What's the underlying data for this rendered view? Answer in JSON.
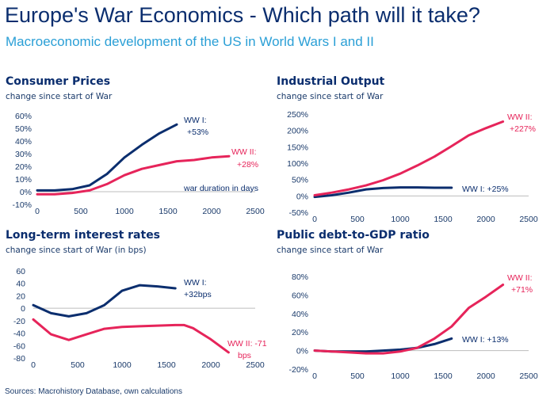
{
  "title": "Europe's War Economics - Which path will it take?",
  "subtitle": "Macroeconomic development of the US in World Wars I and II",
  "source": "Sources: Macrohistory Database, own calculations",
  "colors": {
    "ww1": "#0b2e6e",
    "ww2": "#e6245a",
    "title": "#0a2d6e",
    "subtitle": "#2a9fd6",
    "axis": "#bdbdbd"
  },
  "chart_data": [
    {
      "type": "line",
      "title": "Consumer Prices",
      "subtitle": "change since start of War",
      "xlim": [
        0,
        2500
      ],
      "ylim": [
        -10,
        60
      ],
      "y_ticks": [
        "-10%",
        "0%",
        "10%",
        "20%",
        "30%",
        "40%",
        "50%",
        "60%"
      ],
      "x_ticks": [
        "0",
        "500",
        "1000",
        "1500",
        "2000",
        "2500"
      ],
      "series": [
        {
          "name": "WW I",
          "x": [
            0,
            200,
            400,
            600,
            800,
            1000,
            1200,
            1400,
            1600
          ],
          "y": [
            1,
            1,
            2,
            5,
            14,
            27,
            37,
            46,
            53
          ]
        },
        {
          "name": "WW II",
          "x": [
            0,
            200,
            400,
            600,
            800,
            1000,
            1200,
            1400,
            1600,
            1800,
            2000,
            2200
          ],
          "y": [
            -2,
            -2,
            -1,
            1,
            6,
            13,
            18,
            21,
            24,
            25,
            27,
            28
          ]
        }
      ],
      "annotations": [
        "WW I:",
        "+53%",
        "WW II:",
        "+28%",
        "war duration in days"
      ]
    },
    {
      "type": "line",
      "title": "Industrial Output",
      "subtitle": "change since start of War",
      "xlim": [
        0,
        2500
      ],
      "ylim": [
        -50,
        250
      ],
      "y_ticks": [
        "-50%",
        "0%",
        "50%",
        "100%",
        "150%",
        "200%",
        "250%"
      ],
      "x_ticks": [
        "0",
        "500",
        "1000",
        "1500",
        "2000",
        "2500"
      ],
      "series": [
        {
          "name": "WW I",
          "x": [
            0,
            200,
            400,
            600,
            800,
            1000,
            1200,
            1400,
            1600
          ],
          "y": [
            -3,
            2,
            10,
            20,
            24,
            26,
            26,
            25,
            25
          ]
        },
        {
          "name": "WW II",
          "x": [
            0,
            200,
            400,
            600,
            800,
            1000,
            1200,
            1400,
            1600,
            1800,
            2000,
            2200
          ],
          "y": [
            2,
            10,
            20,
            32,
            48,
            68,
            93,
            120,
            152,
            185,
            207,
            227
          ]
        }
      ],
      "annotations": [
        "WW II:",
        "+227%",
        "WW I: +25%"
      ]
    },
    {
      "type": "line",
      "title": "Long-term interest rates",
      "subtitle": "change since start of War (in bps)",
      "xlim": [
        0,
        2500
      ],
      "ylim": [
        -80,
        60
      ],
      "y_ticks": [
        "-80",
        "-60",
        "-40",
        "-20",
        "0",
        "20",
        "40",
        "60"
      ],
      "x_ticks": [
        "0",
        "500",
        "1000",
        "1500",
        "2000",
        "2500"
      ],
      "series": [
        {
          "name": "WW I",
          "x": [
            0,
            200,
            400,
            600,
            800,
            1000,
            1200,
            1400,
            1600
          ],
          "y": [
            5,
            -8,
            -13,
            -8,
            5,
            28,
            37,
            35,
            32
          ]
        },
        {
          "name": "WW II",
          "x": [
            0,
            200,
            400,
            600,
            800,
            1000,
            1200,
            1400,
            1600,
            1700,
            1800,
            2000,
            2200
          ],
          "y": [
            -18,
            -42,
            -51,
            -42,
            -33,
            -30,
            -29,
            -28,
            -27,
            -27,
            -32,
            -50,
            -71
          ]
        }
      ],
      "annotations": [
        "WW I:",
        "+32bps",
        "WW II: -71",
        "bps"
      ]
    },
    {
      "type": "line",
      "title": "Public debt-to-GDP ratio",
      "subtitle": "change since start of War",
      "xlim": [
        0,
        2500
      ],
      "ylim": [
        -20,
        80
      ],
      "y_ticks": [
        "-20%",
        "0%",
        "20%",
        "40%",
        "60%",
        "80%"
      ],
      "x_ticks": [
        "0",
        "500",
        "1000",
        "1500",
        "2000",
        "2500"
      ],
      "series": [
        {
          "name": "WW I",
          "x": [
            0,
            200,
            400,
            600,
            800,
            1000,
            1200,
            1400,
            1600
          ],
          "y": [
            0,
            -1,
            -1,
            -1,
            0,
            1,
            3,
            7,
            13
          ]
        },
        {
          "name": "WW II",
          "x": [
            0,
            200,
            400,
            600,
            800,
            1000,
            1200,
            1400,
            1600,
            1800,
            2000,
            2200
          ],
          "y": [
            0,
            -1,
            -2,
            -3,
            -3,
            -1,
            3,
            13,
            26,
            46,
            58,
            71
          ]
        }
      ],
      "annotations": [
        "WW II:",
        "+71%",
        "WW I: +13%"
      ]
    }
  ]
}
